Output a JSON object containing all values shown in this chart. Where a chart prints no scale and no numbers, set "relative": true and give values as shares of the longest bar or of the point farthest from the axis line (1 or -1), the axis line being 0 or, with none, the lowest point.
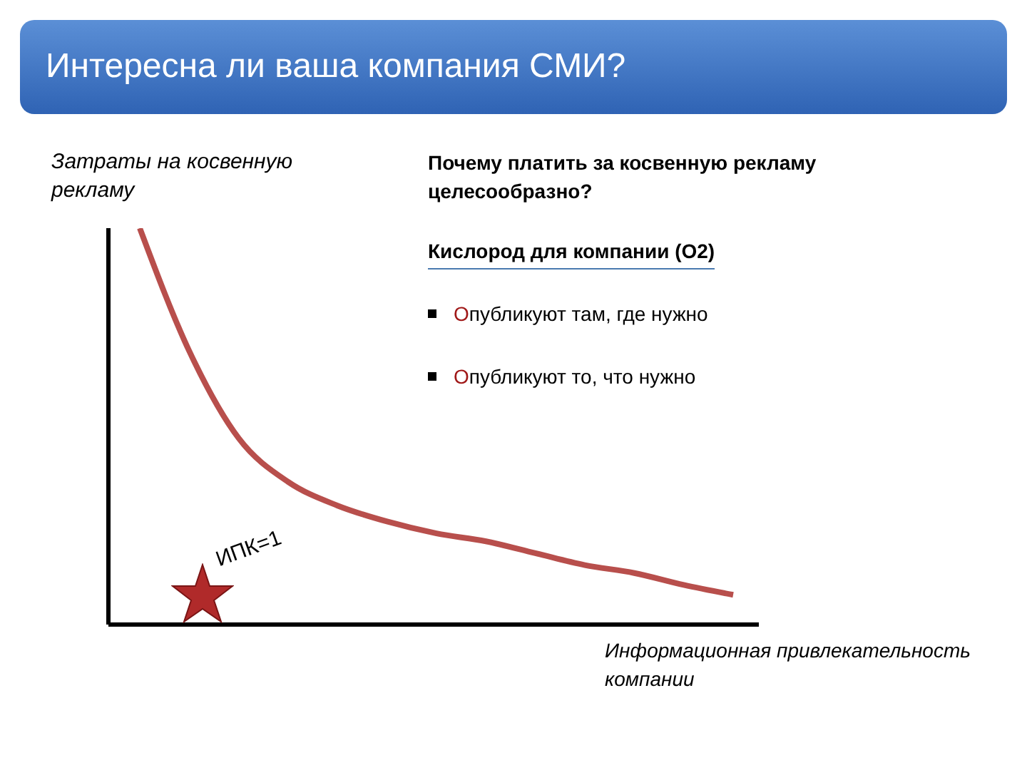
{
  "chart_data": {
    "type": "line",
    "title": "Интересна ли ваша компания СМИ?",
    "ylabel": "Затраты на косвенную рекламу",
    "xlabel": "Информационная привлекательность компании",
    "categories": [
      null,
      null,
      null,
      null,
      null,
      null,
      null,
      null,
      null,
      null,
      null,
      null,
      null
    ],
    "series": [
      {
        "color": "#b84f4c",
        "values": [
          1,
          0.69,
          0.47,
          0.36,
          0.3,
          0.26,
          0.23,
          0.21,
          0.18,
          0.15,
          0.13,
          0.1,
          0.075
        ]
      }
    ],
    "relative": true,
    "marker": "none",
    "line_style": "solid",
    "grid": false,
    "legend": false,
    "annotations": [
      "Почему платить за косвенную рекламу целесообразно?",
      "Кислород для компании (О2)",
      "Опубликуют там, где нужно",
      "Опубликуют то, что нужно",
      "ИПК=1"
    ]
  }
}
